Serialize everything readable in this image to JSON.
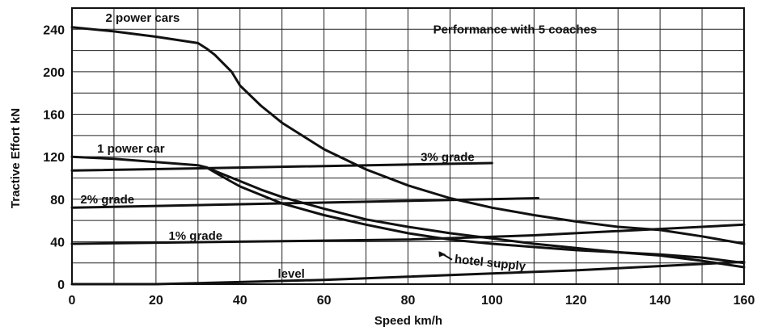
{
  "chart_data": {
    "type": "line",
    "title": "Performance with 5 coaches",
    "xlabel": "Speed km/h",
    "ylabel": "Tractive Effort kN",
    "xlim": [
      0,
      160
    ],
    "ylim": [
      0,
      260
    ],
    "xticks": [
      0,
      20,
      40,
      60,
      80,
      100,
      120,
      140,
      160
    ],
    "yticks": [
      0,
      40,
      80,
      120,
      160,
      200,
      240
    ],
    "grid": true,
    "series": [
      {
        "name": "2 power cars",
        "x": [
          0,
          10,
          20,
          30,
          32,
          34,
          38,
          40,
          45,
          50,
          60,
          70,
          80,
          90,
          100,
          110,
          120,
          130,
          140,
          150,
          160
        ],
        "y": [
          242,
          238,
          233,
          227,
          222,
          216,
          200,
          187,
          168,
          152,
          127,
          108,
          93,
          81,
          72,
          65,
          59,
          54,
          51,
          45,
          38
        ]
      },
      {
        "name": "1 power car",
        "x": [
          0,
          10,
          20,
          30,
          32,
          35,
          40,
          45,
          50,
          60,
          70,
          80,
          90,
          100,
          110,
          120,
          130,
          140,
          150,
          160
        ],
        "y": [
          120,
          118,
          115,
          112,
          110,
          105,
          97,
          89,
          82,
          71,
          61,
          54,
          48,
          43,
          38,
          34,
          30,
          27,
          22,
          16
        ]
      },
      {
        "name": "hotel supply",
        "x": [
          32,
          35,
          40,
          45,
          50,
          60,
          70,
          80,
          90,
          100,
          110,
          120,
          130,
          140,
          150,
          160
        ],
        "y": [
          110,
          103,
          92,
          84,
          76,
          65,
          56,
          48,
          42,
          38,
          35,
          32,
          30,
          28,
          25,
          20
        ]
      },
      {
        "name": "3% grade",
        "x": [
          0,
          100
        ],
        "y": [
          107,
          114
        ]
      },
      {
        "name": "2% grade",
        "x": [
          0,
          111
        ],
        "y": [
          72,
          81
        ]
      },
      {
        "name": "1% grade",
        "x": [
          0,
          40,
          80,
          110,
          160
        ],
        "y": [
          38,
          40,
          42,
          46,
          56
        ]
      },
      {
        "name": "level",
        "x": [
          0,
          20,
          40,
          60,
          80,
          100,
          120,
          140,
          160
        ],
        "y": [
          0,
          0,
          2,
          4,
          7,
          10,
          13,
          17,
          21
        ]
      }
    ],
    "annotations": [
      {
        "text": "2 power cars",
        "x": 8,
        "y": 247
      },
      {
        "text": "1 power car",
        "x": 6,
        "y": 124
      },
      {
        "text": "3% grade",
        "x": 83,
        "y": 116
      },
      {
        "text": "2% grade",
        "x": 2,
        "y": 76
      },
      {
        "text": "1% grade",
        "x": 23,
        "y": 42
      },
      {
        "text": "hotel supply",
        "x": 91,
        "y": 20
      },
      {
        "text": "level",
        "x": 49,
        "y": 6
      }
    ]
  }
}
